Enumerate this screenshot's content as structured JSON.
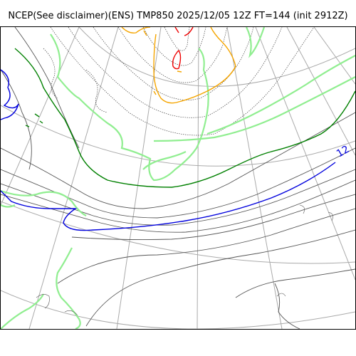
{
  "title": "NCEP(See disclaimer)(ENS) TMP850 2025/12/05 12Z FT=144 (init 2912Z)",
  "contour_label": "12",
  "colors": {
    "graticule": "#aaaaaa",
    "coastline": "#555555",
    "dotted": "#444444",
    "green": "#008000",
    "blue": "#0000dd",
    "lightgreen": "#90ee90",
    "orange": "#f5a500",
    "red": "#ee0000"
  }
}
